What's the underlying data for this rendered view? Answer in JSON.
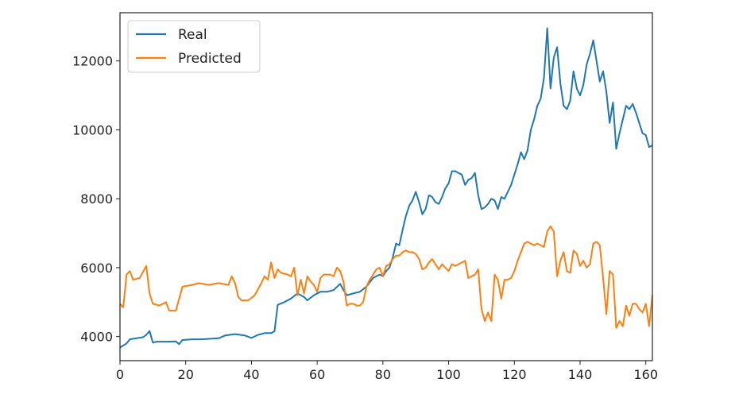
{
  "chart_data": {
    "type": "line",
    "title": "",
    "xlabel": "",
    "ylabel": "",
    "xlim": [
      0,
      162
    ],
    "ylim": [
      3300,
      13400
    ],
    "xticks": [
      0,
      20,
      40,
      60,
      80,
      100,
      120,
      140,
      160
    ],
    "yticks": [
      4000,
      6000,
      8000,
      10000,
      12000
    ],
    "xtick_labels": [
      "0",
      "20",
      "40",
      "60",
      "80",
      "100",
      "120",
      "140",
      "160"
    ],
    "ytick_labels": [
      "4000",
      "6000",
      "8000",
      "10000",
      "12000"
    ],
    "grid": false,
    "legend_position": "top-left",
    "series": [
      {
        "name": "Real",
        "color": "#1f77b4",
        "points": [
          [
            0,
            3680
          ],
          [
            2,
            3800
          ],
          [
            3,
            3920
          ],
          [
            5,
            3950
          ],
          [
            7,
            3980
          ],
          [
            8,
            4050
          ],
          [
            9,
            4160
          ],
          [
            10,
            3820
          ],
          [
            11,
            3850
          ],
          [
            14,
            3850
          ],
          [
            17,
            3860
          ],
          [
            18,
            3780
          ],
          [
            19,
            3900
          ],
          [
            22,
            3920
          ],
          [
            25,
            3920
          ],
          [
            28,
            3940
          ],
          [
            30,
            3950
          ],
          [
            32,
            4030
          ],
          [
            35,
            4070
          ],
          [
            38,
            4030
          ],
          [
            40,
            3960
          ],
          [
            42,
            4050
          ],
          [
            44,
            4100
          ],
          [
            46,
            4100
          ],
          [
            47,
            4150
          ],
          [
            48,
            4920
          ],
          [
            50,
            5000
          ],
          [
            52,
            5100
          ],
          [
            54,
            5250
          ],
          [
            56,
            5150
          ],
          [
            57,
            5050
          ],
          [
            59,
            5200
          ],
          [
            61,
            5300
          ],
          [
            63,
            5300
          ],
          [
            65,
            5350
          ],
          [
            67,
            5530
          ],
          [
            68,
            5350
          ],
          [
            69,
            5200
          ],
          [
            71,
            5250
          ],
          [
            73,
            5300
          ],
          [
            75,
            5450
          ],
          [
            77,
            5700
          ],
          [
            79,
            5800
          ],
          [
            80,
            5750
          ],
          [
            81,
            5900
          ],
          [
            82,
            6000
          ],
          [
            83,
            6300
          ],
          [
            84,
            6700
          ],
          [
            85,
            6650
          ],
          [
            86,
            7100
          ],
          [
            87,
            7500
          ],
          [
            88,
            7800
          ],
          [
            89,
            7950
          ],
          [
            90,
            8200
          ],
          [
            91,
            7900
          ],
          [
            92,
            7550
          ],
          [
            93,
            7700
          ],
          [
            94,
            8100
          ],
          [
            95,
            8050
          ],
          [
            96,
            7900
          ],
          [
            97,
            7850
          ],
          [
            98,
            8050
          ],
          [
            99,
            8300
          ],
          [
            100,
            8450
          ],
          [
            101,
            8800
          ],
          [
            102,
            8800
          ],
          [
            103,
            8750
          ],
          [
            104,
            8700
          ],
          [
            105,
            8400
          ],
          [
            106,
            8550
          ],
          [
            107,
            8600
          ],
          [
            108,
            8750
          ],
          [
            109,
            8100
          ],
          [
            110,
            7700
          ],
          [
            111,
            7750
          ],
          [
            112,
            7850
          ],
          [
            113,
            8000
          ],
          [
            114,
            7950
          ],
          [
            115,
            7700
          ],
          [
            116,
            8050
          ],
          [
            117,
            8000
          ],
          [
            118,
            8200
          ],
          [
            119,
            8400
          ],
          [
            120,
            8700
          ],
          [
            121,
            9000
          ],
          [
            122,
            9350
          ],
          [
            123,
            9150
          ],
          [
            124,
            9400
          ],
          [
            125,
            10000
          ],
          [
            126,
            10300
          ],
          [
            127,
            10700
          ],
          [
            128,
            10900
          ],
          [
            129,
            11500
          ],
          [
            130,
            12950
          ],
          [
            131,
            11200
          ],
          [
            132,
            12100
          ],
          [
            133,
            12400
          ],
          [
            134,
            11350
          ],
          [
            135,
            10700
          ],
          [
            136,
            10600
          ],
          [
            137,
            10850
          ],
          [
            138,
            11700
          ],
          [
            139,
            11200
          ],
          [
            140,
            11000
          ],
          [
            141,
            11300
          ],
          [
            142,
            11900
          ],
          [
            143,
            12200
          ],
          [
            144,
            12600
          ],
          [
            145,
            12000
          ],
          [
            146,
            11400
          ],
          [
            147,
            11700
          ],
          [
            148,
            11100
          ],
          [
            149,
            10200
          ],
          [
            150,
            10800
          ],
          [
            151,
            9450
          ],
          [
            152,
            9900
          ],
          [
            153,
            10300
          ],
          [
            154,
            10700
          ],
          [
            155,
            10600
          ],
          [
            156,
            10750
          ],
          [
            157,
            10500
          ],
          [
            158,
            10200
          ],
          [
            159,
            9900
          ],
          [
            160,
            9850
          ],
          [
            161,
            9500
          ],
          [
            162,
            9550
          ]
        ]
      },
      {
        "name": "Predicted",
        "color": "#ff7f0e",
        "points": [
          [
            0,
            4950
          ],
          [
            1,
            4850
          ],
          [
            2,
            5800
          ],
          [
            3,
            5900
          ],
          [
            4,
            5650
          ],
          [
            6,
            5700
          ],
          [
            8,
            6050
          ],
          [
            9,
            5250
          ],
          [
            10,
            4950
          ],
          [
            12,
            4900
          ],
          [
            14,
            5000
          ],
          [
            15,
            4750
          ],
          [
            17,
            4750
          ],
          [
            19,
            5450
          ],
          [
            22,
            5500
          ],
          [
            24,
            5550
          ],
          [
            27,
            5500
          ],
          [
            30,
            5550
          ],
          [
            33,
            5500
          ],
          [
            34,
            5750
          ],
          [
            35,
            5550
          ],
          [
            36,
            5150
          ],
          [
            37,
            5050
          ],
          [
            39,
            5050
          ],
          [
            41,
            5200
          ],
          [
            43,
            5550
          ],
          [
            44,
            5750
          ],
          [
            45,
            5650
          ],
          [
            46,
            6150
          ],
          [
            47,
            5700
          ],
          [
            48,
            5950
          ],
          [
            49,
            5850
          ],
          [
            51,
            5800
          ],
          [
            52,
            5750
          ],
          [
            53,
            6000
          ],
          [
            54,
            5200
          ],
          [
            55,
            5650
          ],
          [
            56,
            5250
          ],
          [
            57,
            5750
          ],
          [
            58,
            5600
          ],
          [
            59,
            5500
          ],
          [
            60,
            5300
          ],
          [
            61,
            5700
          ],
          [
            62,
            5800
          ],
          [
            64,
            5800
          ],
          [
            65,
            5750
          ],
          [
            66,
            6000
          ],
          [
            67,
            5900
          ],
          [
            68,
            5600
          ],
          [
            69,
            4900
          ],
          [
            70,
            4950
          ],
          [
            71,
            4950
          ],
          [
            72,
            4900
          ],
          [
            73,
            4900
          ],
          [
            74,
            5000
          ],
          [
            75,
            5450
          ],
          [
            76,
            5650
          ],
          [
            77,
            5800
          ],
          [
            78,
            5950
          ],
          [
            79,
            6000
          ],
          [
            80,
            5750
          ],
          [
            81,
            6050
          ],
          [
            82,
            6100
          ],
          [
            83,
            6250
          ],
          [
            84,
            6350
          ],
          [
            85,
            6350
          ],
          [
            86,
            6450
          ],
          [
            87,
            6500
          ],
          [
            88,
            6450
          ],
          [
            89,
            6450
          ],
          [
            90,
            6400
          ],
          [
            91,
            6250
          ],
          [
            92,
            5950
          ],
          [
            93,
            6000
          ],
          [
            94,
            6150
          ],
          [
            95,
            6250
          ],
          [
            96,
            6100
          ],
          [
            97,
            5950
          ],
          [
            98,
            6100
          ],
          [
            99,
            6000
          ],
          [
            100,
            5900
          ],
          [
            101,
            6100
          ],
          [
            102,
            6050
          ],
          [
            103,
            6100
          ],
          [
            104,
            6150
          ],
          [
            105,
            6200
          ],
          [
            106,
            5700
          ],
          [
            107,
            5750
          ],
          [
            108,
            5800
          ],
          [
            109,
            5950
          ],
          [
            110,
            4800
          ],
          [
            111,
            4450
          ],
          [
            112,
            4700
          ],
          [
            113,
            4450
          ],
          [
            114,
            5800
          ],
          [
            115,
            5650
          ],
          [
            116,
            5100
          ],
          [
            117,
            5650
          ],
          [
            118,
            5650
          ],
          [
            119,
            5700
          ],
          [
            120,
            5900
          ],
          [
            121,
            6200
          ],
          [
            122,
            6450
          ],
          [
            123,
            6700
          ],
          [
            124,
            6750
          ],
          [
            125,
            6700
          ],
          [
            126,
            6650
          ],
          [
            127,
            6700
          ],
          [
            128,
            6650
          ],
          [
            129,
            6600
          ],
          [
            130,
            7050
          ],
          [
            131,
            7200
          ],
          [
            132,
            7050
          ],
          [
            133,
            5750
          ],
          [
            134,
            6200
          ],
          [
            135,
            6450
          ],
          [
            136,
            5900
          ],
          [
            137,
            5850
          ],
          [
            138,
            6500
          ],
          [
            139,
            6400
          ],
          [
            140,
            6050
          ],
          [
            141,
            6200
          ],
          [
            142,
            6000
          ],
          [
            143,
            6100
          ],
          [
            144,
            6700
          ],
          [
            145,
            6750
          ],
          [
            146,
            6650
          ],
          [
            147,
            5700
          ],
          [
            148,
            4650
          ],
          [
            149,
            5900
          ],
          [
            150,
            5800
          ],
          [
            151,
            4250
          ],
          [
            152,
            4450
          ],
          [
            153,
            4300
          ],
          [
            154,
            4900
          ],
          [
            155,
            4600
          ],
          [
            156,
            4950
          ],
          [
            157,
            4950
          ],
          [
            158,
            4800
          ],
          [
            159,
            4700
          ],
          [
            160,
            4950
          ],
          [
            161,
            4300
          ],
          [
            162,
            5200
          ]
        ]
      }
    ]
  }
}
